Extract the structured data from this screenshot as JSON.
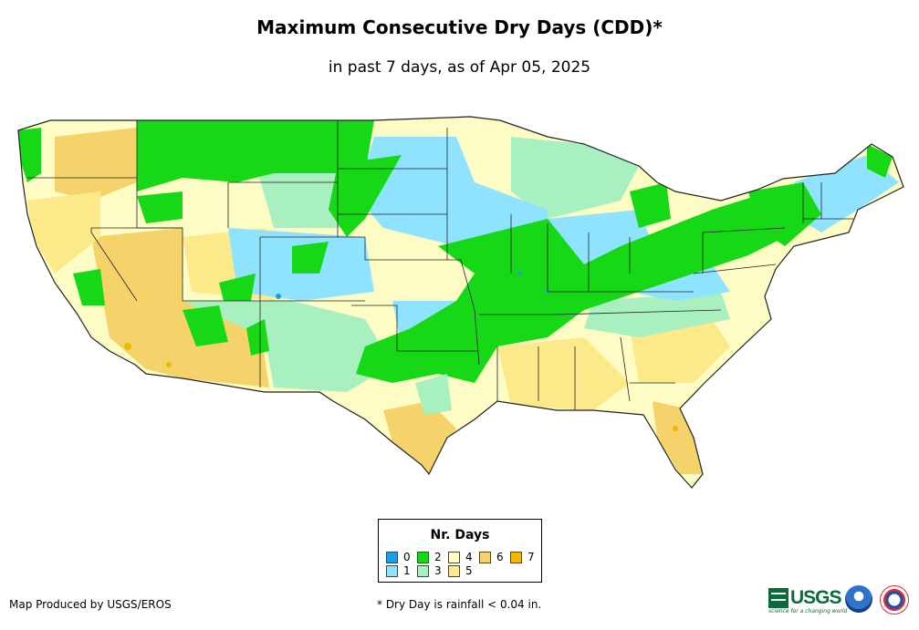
{
  "title": "Maximum Consecutive Dry Days (CDD)*",
  "subtitle": "in past 7 days, as of Apr 05, 2025",
  "legend": {
    "title": "Nr. Days",
    "items": [
      {
        "label": "0",
        "color": "#1a9ee6"
      },
      {
        "label": "1",
        "color": "#8fe3ff"
      },
      {
        "label": "2",
        "color": "#16d816"
      },
      {
        "label": "3",
        "color": "#a8f0c0"
      },
      {
        "label": "4",
        "color": "#fcfcc4"
      },
      {
        "label": "5",
        "color": "#fbe98a"
      },
      {
        "label": "6",
        "color": "#f6d36a"
      },
      {
        "label": "7",
        "color": "#f0b800"
      }
    ]
  },
  "credit": "Map Produced by USGS/EROS",
  "footnote": "* Dry Day is rainfall < 0.04 in.",
  "logos": {
    "usgs": "USGS",
    "usgs_tagline": "science for a changing world",
    "noaa": "noaa-logo",
    "nws": "nws-logo"
  },
  "colors": {
    "state_border": "#222222",
    "background": "#ffffff"
  }
}
